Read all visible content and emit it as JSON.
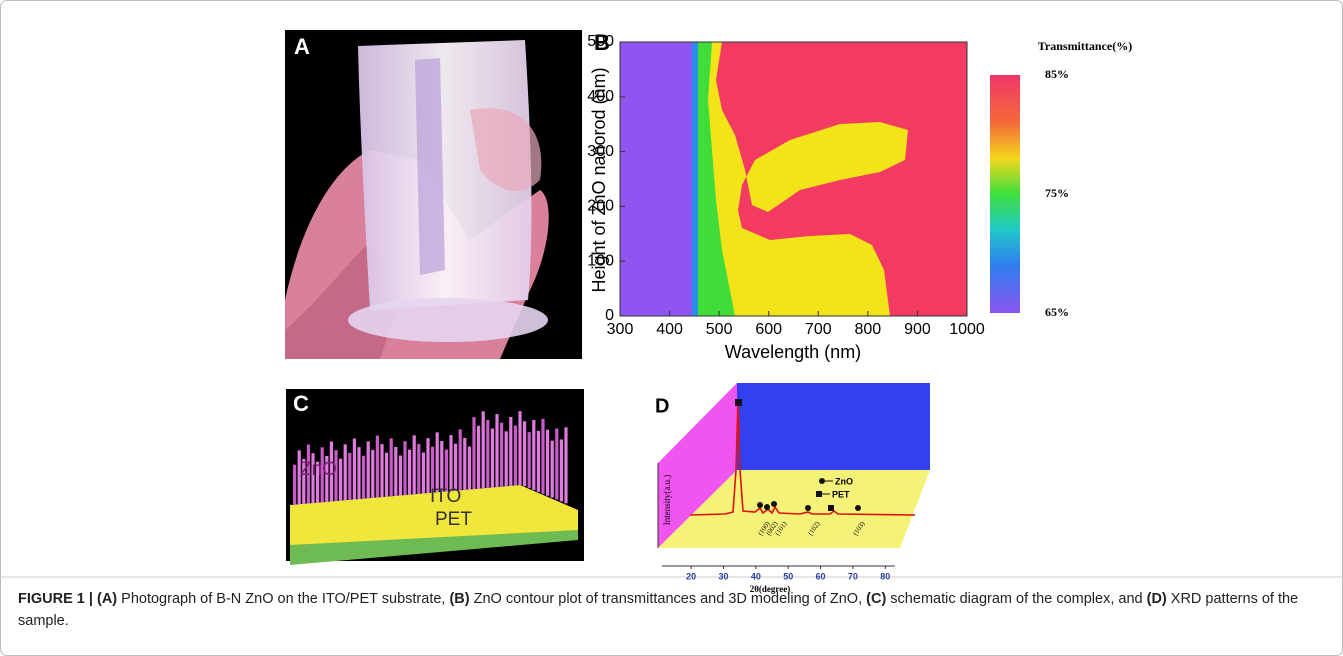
{
  "panels": [
    {
      "label": "A"
    },
    {
      "label": "B",
      "chart_data": {
        "type": "contour",
        "xlabel": "Wavelength (nm)",
        "ylabel": "Height of ZnO nanorod (nm)",
        "xlim": [
          300,
          1000
        ],
        "ylim": [
          0,
          500
        ],
        "xticks": [
          300,
          400,
          500,
          600,
          700,
          800,
          900,
          1000
        ],
        "yticks": [
          0,
          100,
          200,
          300,
          400,
          500
        ],
        "colorbar": {
          "title": "Transmittance(%)",
          "lim": [
            65,
            85
          ],
          "ticks": [
            {
              "value": 85,
              "label": "85%"
            },
            {
              "value": 75,
              "label": "75%"
            },
            {
              "value": 65,
              "label": "65%"
            }
          ]
        }
      }
    },
    {
      "label": "C",
      "layers": [
        "ZnO",
        "ITO",
        "PET"
      ]
    },
    {
      "label": "D",
      "chart_data": {
        "type": "xrd",
        "xlabel": "2θ(degree)",
        "ylabel": "Intensity(a.u.)",
        "xlim": [
          11,
          83
        ],
        "xticks": [
          20,
          30,
          40,
          50,
          60,
          70,
          80
        ],
        "legend": [
          "ZnO",
          "PET"
        ],
        "peaks": [
          "(100)",
          "(002)",
          "(101)",
          "(102)",
          "(103)"
        ]
      }
    }
  ],
  "caption": [
    {
      "text": "FIGURE 1 | ",
      "bold": true
    },
    {
      "text": "(A)",
      "bold": true
    },
    {
      "text": " Photograph of B-N ZnO on the ITO/PET substrate, ",
      "bold": false
    },
    {
      "text": "(B)",
      "bold": true
    },
    {
      "text": " ZnO contour plot of transmittances and 3D modeling of ZnO, ",
      "bold": false
    },
    {
      "text": "(C)",
      "bold": true
    },
    {
      "text": " schematic diagram of the complex, and ",
      "bold": false
    },
    {
      "text": "(D)",
      "bold": true
    },
    {
      "text": " XRD patterns of the sample.",
      "bold": false
    }
  ]
}
